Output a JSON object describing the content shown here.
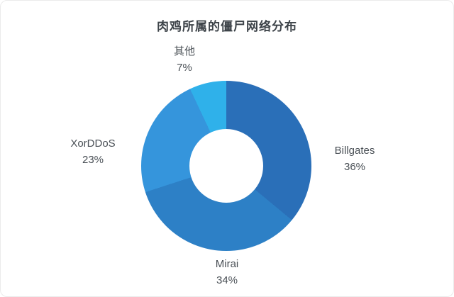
{
  "title": "肉鸡所属的僵尸网络分布",
  "chart_data": {
    "type": "pie",
    "subtype": "donut",
    "title": "肉鸡所属的僵尸网络分布",
    "start_angle_deg": 0,
    "direction": "clockwise",
    "legend": "none",
    "labels_outside": true,
    "slices": [
      {
        "label": "Billgates",
        "value": 36,
        "pct_text": "36%",
        "color": "#2a6fb8"
      },
      {
        "label": "Mirai",
        "value": 34,
        "pct_text": "34%",
        "color": "#2d80c6"
      },
      {
        "label": "XorDDoS",
        "value": 23,
        "pct_text": "23%",
        "color": "#3595dc"
      },
      {
        "label": "其他",
        "value": 7,
        "pct_text": "7%",
        "color": "#2fb1ea"
      }
    ]
  },
  "colors": {
    "background": "#ffffff",
    "title_text": "#3d4349",
    "label_text": "#4a5056",
    "border": "#ebebeb"
  }
}
